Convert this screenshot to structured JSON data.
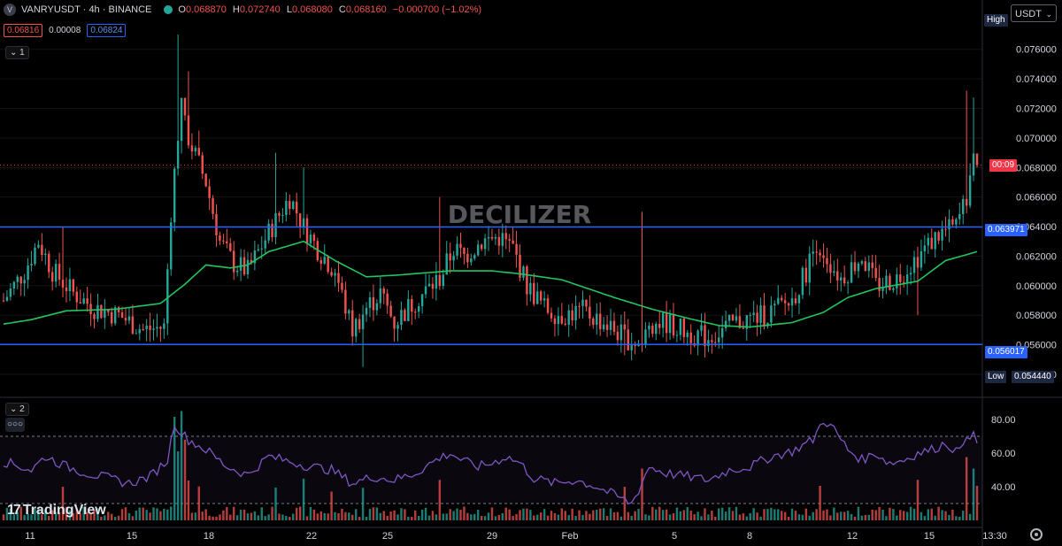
{
  "legend": {
    "symbol": "VANRYUSDT",
    "interval": "4h",
    "exchange": "BINANCE",
    "separator": "·",
    "ohlc": [
      {
        "k": "O",
        "v": "0.068870"
      },
      {
        "k": "H",
        "v": "0.072740"
      },
      {
        "k": "L",
        "v": "0.068080"
      },
      {
        "k": "C",
        "v": "0.068160"
      }
    ],
    "change": "−0.000700 (−1.02%)"
  },
  "price_boxes": {
    "bid": "0.06816",
    "spread": "0.00008",
    "ask": "0.06824"
  },
  "panes": {
    "main_index": "1",
    "rsi_index": "2",
    "more": "○○○"
  },
  "currency": "USDT",
  "watermark": "DECILIZER",
  "branding": "TradingView",
  "price_axis": {
    "labels": [
      "0.076000",
      "0.074000",
      "0.072000",
      "0.070000",
      "0.068000",
      "0.066000",
      "0.064000",
      "0.062000",
      "0.060000",
      "0.058000",
      "0.056000",
      "0.054000"
    ],
    "high_label": "High",
    "low_label": "Low",
    "low_value": "0.054440",
    "countdown": "00:09",
    "level_upper": "0.063971",
    "level_lower": "0.056017"
  },
  "rsi_axis": {
    "labels": [
      "80.00",
      "60.00",
      "40.00"
    ]
  },
  "time_axis": {
    "labels": [
      "11",
      "15",
      "18",
      "22",
      "25",
      "29",
      "Feb",
      "5",
      "8",
      "12",
      "15",
      "13:30"
    ]
  },
  "colors": {
    "up": "#26a69a",
    "down": "#ef5350",
    "ma": "#22c55e",
    "level": "#2962ff",
    "rsi": "#7e57c2",
    "countdown": "#f23645"
  },
  "chart_data": {
    "type": "candlestick",
    "interval": "4h",
    "y_range": [
      0.0525,
      0.0785
    ],
    "levels": [
      0.063971,
      0.056017
    ],
    "last_price": 0.06816,
    "moving_average_anchors": [
      [
        0,
        0.0574
      ],
      [
        8,
        0.0577
      ],
      [
        18,
        0.0583
      ],
      [
        32,
        0.0584
      ],
      [
        45,
        0.0588
      ],
      [
        52,
        0.0601
      ],
      [
        58,
        0.0614
      ],
      [
        65,
        0.0612
      ],
      [
        70,
        0.0614
      ],
      [
        76,
        0.0623
      ],
      [
        86,
        0.063
      ],
      [
        95,
        0.0617
      ],
      [
        104,
        0.0606
      ],
      [
        112,
        0.0607
      ],
      [
        128,
        0.061
      ],
      [
        140,
        0.061
      ],
      [
        148,
        0.0608
      ],
      [
        160,
        0.0604
      ],
      [
        175,
        0.0592
      ],
      [
        186,
        0.0584
      ],
      [
        196,
        0.0578
      ],
      [
        205,
        0.0573
      ],
      [
        214,
        0.0572
      ],
      [
        226,
        0.0575
      ],
      [
        235,
        0.0582
      ],
      [
        242,
        0.0592
      ],
      [
        250,
        0.0598
      ],
      [
        262,
        0.0603
      ],
      [
        270,
        0.0617
      ],
      [
        279,
        0.0623
      ]
    ],
    "price_anchors": [
      [
        0,
        0.059
      ],
      [
        6,
        0.061
      ],
      [
        10,
        0.063
      ],
      [
        14,
        0.061
      ],
      [
        20,
        0.0595
      ],
      [
        26,
        0.0585
      ],
      [
        33,
        0.058
      ],
      [
        40,
        0.057
      ],
      [
        46,
        0.0572
      ],
      [
        48,
        0.065
      ],
      [
        51,
        0.073
      ],
      [
        53,
        0.07
      ],
      [
        58,
        0.067
      ],
      [
        62,
        0.063
      ],
      [
        66,
        0.0615
      ],
      [
        70,
        0.061
      ],
      [
        77,
        0.064
      ],
      [
        82,
        0.066
      ],
      [
        86,
        0.064
      ],
      [
        90,
        0.0625
      ],
      [
        95,
        0.061
      ],
      [
        98,
        0.0585
      ],
      [
        100,
        0.057
      ],
      [
        104,
        0.0585
      ],
      [
        108,
        0.0595
      ],
      [
        112,
        0.0575
      ],
      [
        118,
        0.059
      ],
      [
        125,
        0.0605
      ],
      [
        129,
        0.0625
      ],
      [
        132,
        0.062
      ],
      [
        137,
        0.063
      ],
      [
        142,
        0.0633
      ],
      [
        146,
        0.0625
      ],
      [
        150,
        0.06
      ],
      [
        155,
        0.0585
      ],
      [
        160,
        0.058
      ],
      [
        166,
        0.0583
      ],
      [
        172,
        0.0575
      ],
      [
        178,
        0.0565
      ],
      [
        183,
        0.056
      ],
      [
        185,
        0.0575
      ],
      [
        190,
        0.0575
      ],
      [
        196,
        0.0568
      ],
      [
        202,
        0.0565
      ],
      [
        210,
        0.0575
      ],
      [
        218,
        0.058
      ],
      [
        226,
        0.059
      ],
      [
        230,
        0.061
      ],
      [
        233,
        0.063
      ],
      [
        237,
        0.0615
      ],
      [
        240,
        0.0605
      ],
      [
        246,
        0.062
      ],
      [
        250,
        0.06
      ],
      [
        256,
        0.0605
      ],
      [
        262,
        0.062
      ],
      [
        268,
        0.0635
      ],
      [
        273,
        0.064
      ],
      [
        276,
        0.066
      ],
      [
        278,
        0.0695
      ],
      [
        279,
        0.06816
      ]
    ],
    "spikes": [
      [
        17,
        0.064
      ],
      [
        50,
        0.077
      ],
      [
        53,
        0.0745
      ],
      [
        56,
        0.0705
      ],
      [
        78,
        0.069
      ],
      [
        86,
        0.068
      ],
      [
        103,
        0.0545
      ],
      [
        125,
        0.066
      ],
      [
        178,
        0.0553
      ],
      [
        183,
        0.065
      ],
      [
        262,
        0.058
      ],
      [
        276,
        0.0732
      ],
      [
        278,
        0.07274
      ]
    ],
    "rsi": {
      "range": [
        20,
        90
      ],
      "upper": 70,
      "lower": 30,
      "anchors": [
        [
          0,
          55
        ],
        [
          8,
          50
        ],
        [
          12,
          58
        ],
        [
          18,
          52
        ],
        [
          24,
          48
        ],
        [
          30,
          45
        ],
        [
          36,
          42
        ],
        [
          42,
          46
        ],
        [
          47,
          56
        ],
        [
          49,
          78
        ],
        [
          51,
          72
        ],
        [
          53,
          68
        ],
        [
          58,
          62
        ],
        [
          64,
          52
        ],
        [
          70,
          47
        ],
        [
          76,
          58
        ],
        [
          82,
          55
        ],
        [
          88,
          52
        ],
        [
          94,
          50
        ],
        [
          100,
          42
        ],
        [
          106,
          46
        ],
        [
          112,
          44
        ],
        [
          118,
          48
        ],
        [
          124,
          56
        ],
        [
          128,
          60
        ],
        [
          132,
          55
        ],
        [
          136,
          52
        ],
        [
          140,
          54
        ],
        [
          144,
          58
        ],
        [
          148,
          54
        ],
        [
          152,
          45
        ],
        [
          158,
          42
        ],
        [
          164,
          44
        ],
        [
          170,
          40
        ],
        [
          176,
          34
        ],
        [
          180,
          30
        ],
        [
          182,
          38
        ],
        [
          185,
          52
        ],
        [
          190,
          48
        ],
        [
          196,
          46
        ],
        [
          202,
          44
        ],
        [
          208,
          50
        ],
        [
          214,
          52
        ],
        [
          220,
          58
        ],
        [
          226,
          61
        ],
        [
          232,
          68
        ],
        [
          235,
          80
        ],
        [
          238,
          74
        ],
        [
          242,
          62
        ],
        [
          246,
          56
        ],
        [
          250,
          60
        ],
        [
          254,
          54
        ],
        [
          258,
          56
        ],
        [
          262,
          60
        ],
        [
          266,
          62
        ],
        [
          270,
          66
        ],
        [
          274,
          60
        ],
        [
          276,
          72
        ],
        [
          278,
          70
        ],
        [
          279,
          66
        ]
      ]
    },
    "volume_spikes": [
      [
        49,
        90
      ],
      [
        51,
        95
      ],
      [
        52,
        70
      ],
      [
        50,
        60
      ],
      [
        94,
        25
      ],
      [
        183,
        45
      ],
      [
        234,
        30
      ],
      [
        276,
        55
      ],
      [
        278,
        45
      ],
      [
        279,
        30
      ]
    ]
  }
}
